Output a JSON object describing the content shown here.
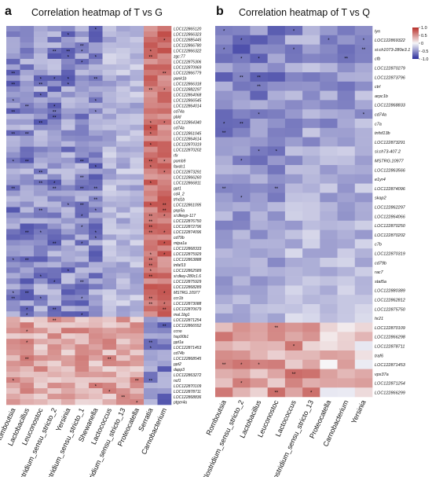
{
  "chart_data": [
    {
      "type": "heatmap",
      "panel": "a",
      "title": "Correlation heatmap of T vs G",
      "columns": [
        "Romboutsia",
        "Lactobacillus",
        "Leuconostoc",
        "Clostridium_sensu_stricto_2",
        "Yersinia",
        "Clostridium_sensu_stricto_1",
        "Shewanella",
        "Lactococcus",
        "Clostridium_sensu_stricto_13",
        "Proteocatella",
        "Serratia",
        "Carnobacterium"
      ],
      "row_labels_visible": [
        "LOC122865120",
        "LOC122866323",
        "LOC122885445",
        "LOC122866780",
        "LOC122866322",
        "zgc:77",
        "LOC122875306",
        "LOC122870969",
        "LOC122866779",
        "pank1b",
        "LOC122866318",
        "LOC122882297",
        "LOC122864068",
        "LOC122866545",
        "LOC122864014",
        "cd74a",
        "pbld",
        "LOC122864340",
        "cd74a",
        "LOC122861045",
        "LOC122864614",
        "LOC122870319",
        "LOC122870202",
        "rfx",
        "pomb9",
        "faxdc1",
        "LOC122873291",
        "LOC122866260",
        "LOC122866811",
        "ppt1",
        "cd4_2",
        "trhd1b",
        "LOC122861095",
        "pnp5a",
        "si:dkeyp-117",
        "LOC122876750",
        "LOC122872796",
        "LOC122874096",
        "cd79b",
        "mtpa1a",
        "LOC122868333",
        "LOC122875929",
        "LOC122863888",
        "tnfaf13",
        "LOC122862589",
        "si:dkey-280c1.6",
        "LOC122875929",
        "LOC122868289",
        "MSTRG.10977",
        "ccr1b",
        "LOC122873088",
        "LOC122870679",
        "mal.1bg1",
        "LOC122871254",
        "LOC122866552",
        "ccno",
        "hsp90b1",
        "ppt1a",
        "LOC122871453",
        "cd74b",
        "LOC122868545",
        "ppt2",
        "dapp3",
        "LOC122863272",
        "ncf1",
        "LOC122870109",
        "LOC122878711",
        "LOC122868836",
        "ptger4a"
      ],
      "summary": "Top block (~53 rows): positive correlation (red) with Serratia and Carnobacterium, negative (blue) with the other 10 genera. Bottom block (~16 rows): positive with Romboutsia through Proteocatella, negative with Serratia and Carnobacterium. Asterisks mark significant cells.",
      "color_scale": {
        "low": "#2a2d9b",
        "mid": "#f6f6f8",
        "high": "#b8302a"
      }
    },
    {
      "type": "heatmap",
      "panel": "b",
      "title": "Correlation heatmap of T vs Q",
      "columns": [
        "Romboutsia",
        "Clostridium_sensu_stricto_2",
        "Lactobacillus",
        "Leuconostoc",
        "Lactococcus",
        "Clostridium_sensu_stricto_13",
        "Proteocatella",
        "Carnobacterium",
        "Yersinia"
      ],
      "rows": [
        "lyn",
        "LOC122869322",
        "si:ch1073-280e3.1",
        "cfb",
        "LOC122870279",
        "LOC122873796",
        "ctrl",
        "arpc1b",
        "LOC122868833",
        "cd74a",
        "c7a",
        "tnfsf13b",
        "LOC122873291",
        "si:ch73-407.2",
        "MSTRG.10977",
        "LOC122863566",
        "e1yr4",
        "LOC122874096",
        "skap2",
        "LOC122862297",
        "LOC122864066",
        "LOC122870250",
        "LOC122870202",
        "c7b",
        "LOC122870319",
        "cd79b",
        "rac7",
        "stat5a",
        "LOC122880389",
        "LOC122862812",
        "LOC122875750",
        "hr21",
        "LOC122870109",
        "LOC122866298",
        "LOC122878711",
        "traf6",
        "LOC122871453",
        "vps37a",
        "LOC122871254",
        "LOC122866299"
      ],
      "summary": "Rows 'lyn' to 'hr21' (32 rows): negative correlation (blue) with all genera. Rows 'LOC122870109' to 'LOC122866299' (8 rows): positive correlation (red). Asterisks mark significant cells.",
      "legend": {
        "ticks": [
          "1.0",
          "0.5",
          "0",
          "-0.5",
          "-1.0"
        ],
        "min": -1.0,
        "max": 1.0
      },
      "color_scale": {
        "low": "#2a2d9b",
        "mid": "#f6f6f8",
        "high": "#b8302a"
      }
    }
  ]
}
